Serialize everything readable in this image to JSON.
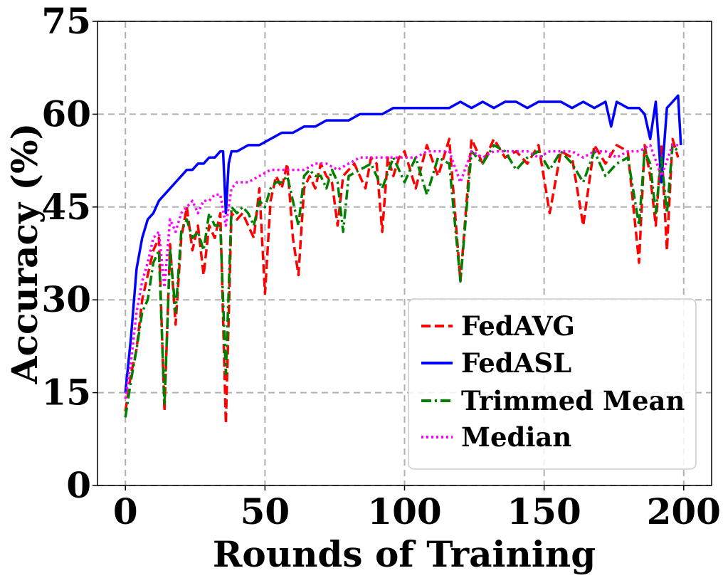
{
  "chart_data": {
    "type": "line",
    "title": "",
    "xlabel": "Rounds of Training",
    "ylabel": "Accuracy (%)",
    "xlim": [
      -10,
      210
    ],
    "ylim": [
      0,
      75
    ],
    "xticks": [
      "0",
      "50",
      "100",
      "150",
      "200"
    ],
    "yticks": [
      "0",
      "15",
      "30",
      "45",
      "60",
      "75"
    ],
    "grid": true,
    "legend_position": "lower-right",
    "series": [
      {
        "name": "FedAVG",
        "color": "#ff0000",
        "style": "dashed",
        "x": [
          0,
          2,
          4,
          6,
          8,
          10,
          12,
          14,
          16,
          18,
          20,
          22,
          24,
          26,
          28,
          30,
          32,
          34,
          36,
          38,
          40,
          42,
          44,
          46,
          48,
          50,
          52,
          54,
          56,
          58,
          60,
          62,
          64,
          66,
          68,
          70,
          72,
          74,
          76,
          78,
          80,
          82,
          84,
          86,
          88,
          90,
          92,
          94,
          96,
          98,
          100,
          104,
          108,
          112,
          116,
          120,
          124,
          128,
          132,
          136,
          140,
          144,
          148,
          152,
          156,
          160,
          164,
          168,
          172,
          176,
          180,
          184,
          186,
          188,
          190,
          192,
          194,
          196,
          198
        ],
        "values": [
          12,
          18,
          22,
          30,
          34,
          38,
          40,
          12,
          39,
          26,
          40,
          45,
          38,
          42,
          34,
          42,
          40,
          44,
          10,
          44,
          43,
          44,
          42,
          40,
          48,
          31,
          46,
          50,
          48,
          52,
          40,
          34,
          48,
          50,
          48,
          52,
          50,
          49,
          42,
          50,
          51,
          52,
          50,
          48,
          53,
          52,
          41,
          53,
          50,
          53,
          54,
          48,
          55,
          50,
          56,
          33,
          56,
          52,
          56,
          53,
          54,
          52,
          55,
          44,
          54,
          53,
          42,
          55,
          52,
          55,
          54,
          36,
          55,
          50,
          42,
          55,
          38,
          56,
          53
        ]
      },
      {
        "name": "FedASL",
        "color": "#0000ff",
        "style": "solid",
        "x": [
          0,
          2,
          4,
          6,
          8,
          10,
          12,
          14,
          16,
          18,
          20,
          22,
          24,
          26,
          28,
          30,
          32,
          34,
          35,
          36,
          37,
          38,
          40,
          44,
          48,
          52,
          56,
          60,
          64,
          68,
          72,
          76,
          80,
          84,
          88,
          92,
          96,
          100,
          104,
          108,
          112,
          116,
          120,
          124,
          128,
          132,
          136,
          140,
          144,
          148,
          152,
          156,
          160,
          164,
          168,
          172,
          174,
          176,
          180,
          184,
          186,
          188,
          190,
          192,
          194,
          196,
          198,
          199
        ],
        "values": [
          15,
          24,
          35,
          40,
          43,
          44,
          46,
          47,
          48,
          49,
          50,
          51,
          51,
          52,
          52,
          53,
          53,
          54,
          54,
          44,
          52,
          54,
          54,
          55,
          55,
          56,
          57,
          57,
          58,
          58,
          59,
          59,
          59,
          60,
          60,
          60,
          61,
          61,
          61,
          61,
          61,
          61,
          62,
          61,
          62,
          61,
          62,
          62,
          61,
          62,
          62,
          62,
          61,
          62,
          61,
          62,
          58,
          62,
          61,
          61,
          60,
          56,
          62,
          49,
          61,
          62,
          63,
          55
        ]
      },
      {
        "name": "Trimmed Mean",
        "color": "#008000",
        "style": "dashdot",
        "x": [
          0,
          2,
          4,
          6,
          8,
          10,
          12,
          14,
          16,
          18,
          20,
          22,
          24,
          26,
          28,
          30,
          32,
          34,
          36,
          38,
          40,
          42,
          44,
          46,
          48,
          50,
          52,
          54,
          56,
          58,
          60,
          62,
          64,
          66,
          68,
          70,
          72,
          74,
          76,
          78,
          80,
          84,
          88,
          92,
          96,
          100,
          104,
          108,
          112,
          116,
          120,
          124,
          128,
          132,
          136,
          140,
          144,
          148,
          152,
          156,
          160,
          164,
          168,
          172,
          176,
          180,
          184,
          186,
          188,
          190,
          192,
          194,
          196,
          198
        ],
        "values": [
          11,
          17,
          22,
          28,
          30,
          36,
          38,
          13,
          38,
          28,
          41,
          43,
          40,
          41,
          38,
          44,
          42,
          42,
          18,
          45,
          44,
          45,
          44,
          42,
          46,
          45,
          48,
          49,
          49,
          50,
          46,
          42,
          50,
          51,
          50,
          50,
          48,
          51,
          49,
          41,
          50,
          51,
          52,
          48,
          53,
          49,
          53,
          47,
          53,
          52,
          33,
          54,
          52,
          55,
          54,
          51,
          53,
          54,
          51,
          54,
          52,
          49,
          54,
          50,
          52,
          53,
          42,
          54,
          52,
          44,
          53,
          44,
          55,
          54
        ]
      },
      {
        "name": "Median",
        "color": "#ff00ff",
        "style": "dotted",
        "x": [
          0,
          2,
          4,
          6,
          8,
          10,
          12,
          14,
          16,
          18,
          20,
          22,
          24,
          26,
          28,
          30,
          32,
          34,
          36,
          38,
          40,
          44,
          48,
          52,
          56,
          60,
          64,
          68,
          72,
          76,
          80,
          84,
          88,
          92,
          96,
          100,
          104,
          108,
          112,
          116,
          120,
          124,
          128,
          132,
          136,
          140,
          144,
          148,
          152,
          156,
          160,
          164,
          168,
          172,
          176,
          180,
          184,
          188,
          192,
          196,
          198
        ],
        "values": [
          14,
          20,
          28,
          33,
          36,
          40,
          41,
          32,
          43,
          41,
          44,
          45,
          46,
          44,
          46,
          46,
          47,
          47,
          42,
          48,
          49,
          49,
          50,
          51,
          51,
          51,
          51,
          52,
          52,
          51,
          52,
          53,
          53,
          53,
          53,
          53,
          53,
          54,
          54,
          54,
          49,
          54,
          53,
          54,
          54,
          54,
          54,
          53,
          54,
          54,
          54,
          53,
          54,
          54,
          53,
          54,
          54,
          55,
          50,
          55,
          55
        ]
      }
    ]
  }
}
